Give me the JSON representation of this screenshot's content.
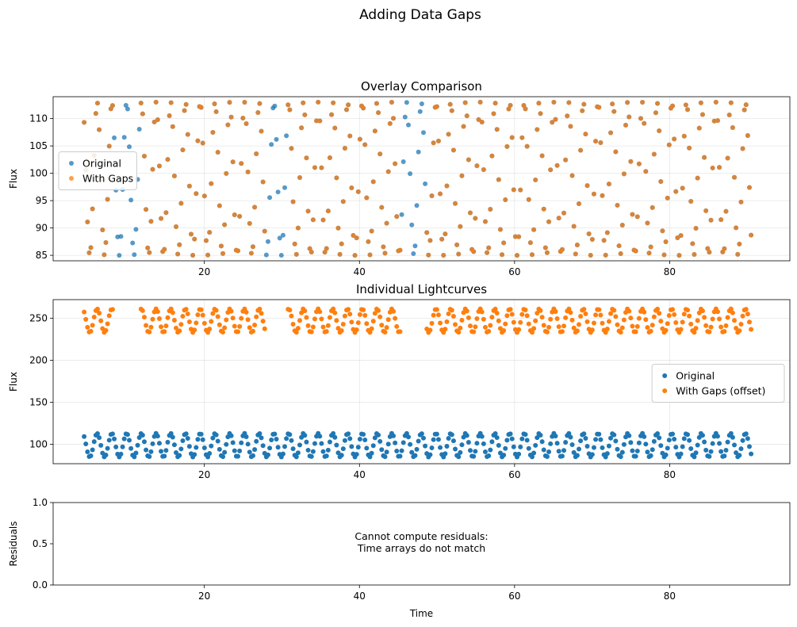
{
  "suptitle": "Adding Data Gaps",
  "colors": {
    "original": "#1f77b4",
    "gaps": "#ff7f0e"
  },
  "chart_data": [
    {
      "type": "scatter",
      "title": "Overlay Comparison",
      "xlabel": "",
      "ylabel": "Flux",
      "xlim": [
        0.5,
        95.5
      ],
      "ylim": [
        84,
        114
      ],
      "xticks": [
        20,
        40,
        60,
        80
      ],
      "yticks": [
        85,
        90,
        95,
        100,
        105,
        110
      ],
      "grid": true,
      "legend_position": "center-left",
      "legend": [
        "Original",
        "With Gaps"
      ],
      "signal": {
        "t_start": 4.5,
        "t_end": 90.5,
        "n_points": 400,
        "mean": 99,
        "amplitude": 14,
        "period": 1.9
      },
      "gaps": [
        [
          8.3,
          11.7
        ],
        [
          27.8,
          30.7
        ],
        [
          45.4,
          48.6
        ]
      ],
      "series": [
        {
          "name": "Original",
          "color": "#1f77b4",
          "alpha": 0.75,
          "marker_radius": 3
        },
        {
          "name": "With Gaps",
          "color": "#ff7f0e",
          "alpha": 0.75,
          "marker_radius": 3
        }
      ]
    },
    {
      "type": "scatter",
      "title": "Individual Lightcurves",
      "xlabel": "",
      "ylabel": "Flux",
      "xlim": [
        0.5,
        95.5
      ],
      "ylim": [
        77,
        272
      ],
      "xticks": [
        20,
        40,
        60,
        80
      ],
      "yticks": [
        100,
        150,
        200,
        250
      ],
      "grid": true,
      "legend_position": "center-right",
      "legend": [
        "Original",
        "With Gaps (offset)"
      ],
      "offset": 148,
      "series": [
        {
          "name": "Original",
          "color": "#1f77b4",
          "alpha": 1,
          "marker_radius": 3
        },
        {
          "name": "With Gaps (offset)",
          "color": "#ff7f0e",
          "alpha": 1,
          "marker_radius": 3
        }
      ]
    },
    {
      "type": "scatter",
      "title": "",
      "xlabel": "Time",
      "ylabel": "Residuals",
      "xlim": [
        0.5,
        95.5
      ],
      "ylim": [
        0,
        1
      ],
      "xticks": [
        20,
        40,
        60,
        80
      ],
      "yticks": [
        0.0,
        0.5,
        1.0
      ],
      "ytick_labels": [
        "0.0",
        "0.5",
        "1.0"
      ],
      "grid": false,
      "message": [
        "Cannot compute residuals:",
        "Time arrays do not match"
      ]
    }
  ]
}
